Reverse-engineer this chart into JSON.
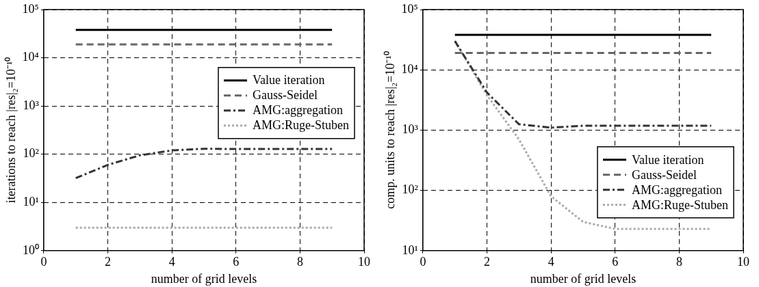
{
  "chart_data": [
    {
      "type": "line",
      "xlabel": "number of grid levels",
      "ylabel": "iterations to reach |res|₂=10⁻¹⁰",
      "x": [
        1,
        2,
        3,
        4,
        5,
        6,
        7,
        8,
        9
      ],
      "series": [
        {
          "name": "Value iteration",
          "color": "#000000",
          "line_style": "solid",
          "values": [
            38000,
            38000,
            38000,
            38000,
            38000,
            38000,
            38000,
            38000,
            38000
          ]
        },
        {
          "name": "Gauss-Seidel",
          "color": "#666666",
          "line_style": "dashed",
          "values": [
            19000,
            19000,
            19000,
            19000,
            19000,
            19000,
            19000,
            19000,
            19000
          ]
        },
        {
          "name": "AMG:aggregation",
          "color": "#333333",
          "line_style": "dashdot",
          "values": [
            32,
            60,
            95,
            120,
            130,
            128,
            128,
            128,
            128
          ]
        },
        {
          "name": "AMG:Ruge-Stuben",
          "color": "#aaaaaa",
          "line_style": "dotted",
          "values": [
            3,
            3,
            3,
            3,
            3,
            3,
            3,
            3,
            3
          ]
        }
      ],
      "xlim": [
        0,
        10
      ],
      "xticks": [
        0,
        2,
        4,
        6,
        8,
        10
      ],
      "ylim": [
        1,
        100000
      ],
      "yticks": [
        {
          "value": 1,
          "label": "10⁰"
        },
        {
          "value": 10,
          "label": "10¹"
        },
        {
          "value": 100,
          "label": "10²"
        },
        {
          "value": 1000,
          "label": "10³"
        },
        {
          "value": 10000,
          "label": "10⁴"
        },
        {
          "value": 100000,
          "label": "10⁵"
        }
      ],
      "log": "y",
      "grid": true,
      "legend": "right",
      "marker": "none"
    },
    {
      "type": "line",
      "xlabel": "number of grid levels",
      "ylabel": "comp. units to reach |res|₂=10⁻¹⁰",
      "x": [
        1,
        2,
        3,
        4,
        5,
        6,
        7,
        8,
        9
      ],
      "series": [
        {
          "name": "Value iteration",
          "color": "#000000",
          "line_style": "solid",
          "values": [
            38000,
            38000,
            38000,
            38000,
            38000,
            38000,
            38000,
            38000,
            38000
          ]
        },
        {
          "name": "Gauss-Seidel",
          "color": "#666666",
          "line_style": "dashed",
          "values": [
            19000,
            19000,
            19000,
            19000,
            19000,
            19000,
            19000,
            19000,
            19000
          ]
        },
        {
          "name": "AMG:aggregation",
          "color": "#333333",
          "line_style": "dashdot",
          "values": [
            30000,
            4200,
            1250,
            1100,
            1180,
            1180,
            1180,
            1180,
            1180
          ]
        },
        {
          "name": "AMG:Ruge-Stuben",
          "color": "#aaaaaa",
          "line_style": "dotted",
          "values": [
            30000,
            3800,
            700,
            80,
            30,
            23,
            23,
            23,
            23
          ]
        }
      ],
      "xlim": [
        0,
        10
      ],
      "xticks": [
        0,
        2,
        4,
        6,
        8,
        10
      ],
      "ylim": [
        10,
        100000
      ],
      "yticks": [
        {
          "value": 10,
          "label": "10¹"
        },
        {
          "value": 100,
          "label": "10²"
        },
        {
          "value": 1000,
          "label": "10³"
        },
        {
          "value": 10000,
          "label": "10⁴"
        },
        {
          "value": 100000,
          "label": "10⁵"
        }
      ],
      "log": "y",
      "grid": true,
      "legend": "bottom right",
      "marker": "none"
    }
  ]
}
